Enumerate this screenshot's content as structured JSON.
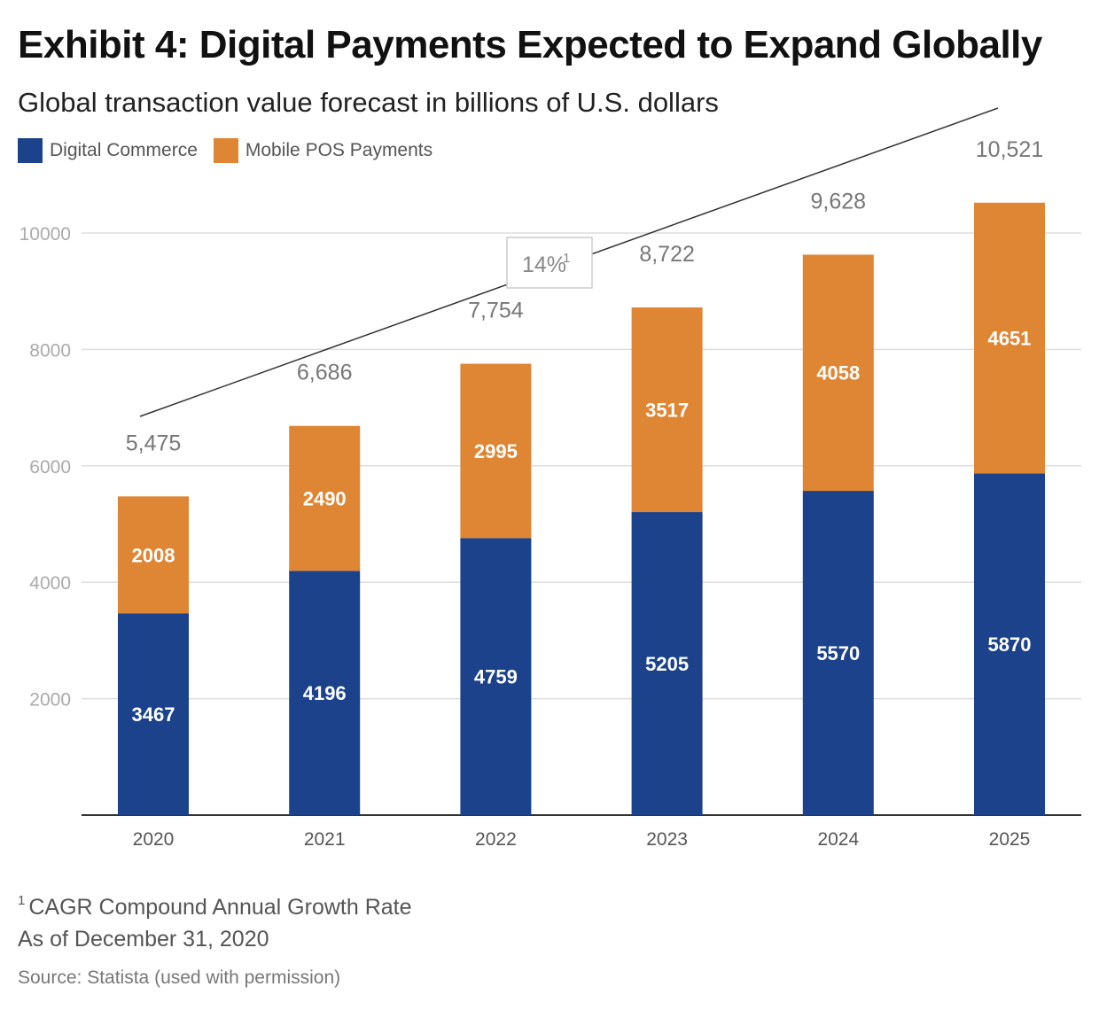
{
  "title": "Exhibit 4: Digital Payments Expected to Expand Globally",
  "subtitle": "Global transaction value forecast in billions of U.S. dollars",
  "legend": [
    {
      "label": "Digital Commerce",
      "color": "#1b428a"
    },
    {
      "label": "Mobile POS Payments",
      "color": "#df8634"
    }
  ],
  "cagr_label": "14%",
  "cagr_marker": "1",
  "footnote_marker": "1",
  "footnote_text": "CAGR Compound Annual Growth Rate",
  "as_of": "As of December 31, 2020",
  "source": "Source: Statista (used with permission)",
  "chart_data": {
    "type": "bar",
    "stacked": true,
    "categories": [
      "2020",
      "2021",
      "2022",
      "2023",
      "2024",
      "2025"
    ],
    "series": [
      {
        "name": "Digital Commerce",
        "color": "#1b428a",
        "values": [
          3467,
          4196,
          4759,
          5205,
          5570,
          5870
        ]
      },
      {
        "name": "Mobile POS Payments",
        "color": "#df8634",
        "values": [
          2008,
          2490,
          2995,
          3517,
          4058,
          4651
        ]
      }
    ],
    "totals": [
      "5,475",
      "6,686",
      "7,754",
      "8,722",
      "9,628",
      "10,521"
    ],
    "y_ticks": [
      2000,
      4000,
      6000,
      8000,
      10000
    ],
    "ylim": [
      0,
      10521
    ],
    "grid": true,
    "legend_position": "top-left"
  }
}
